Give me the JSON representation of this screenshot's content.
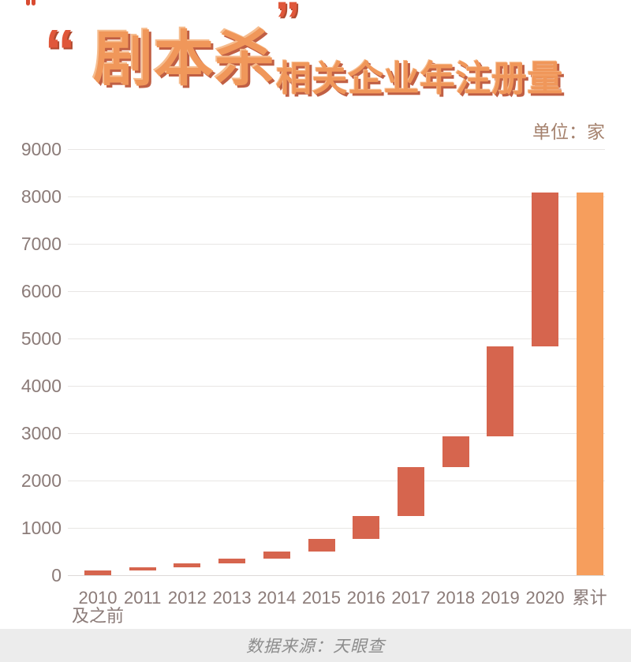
{
  "page": {
    "title": {
      "quote_open": "“",
      "highlight": "剧本杀",
      "quote_close": "”",
      "rest": "相关企业年注册量"
    },
    "unit_label": "单位：家",
    "source": "数据来源：天眼查"
  },
  "colors": {
    "increment_bar": "#D6654E",
    "total_bar": "#F69E5D",
    "title_face": "#F0975A",
    "title_shadow": "#C05F44",
    "quote_red": "#E0573A",
    "axis_text": "#8B7B78",
    "unit_text": "#A5826E",
    "gridline": "#E8E6E4",
    "footer_bg": "#ECECEC",
    "footer_text": "#8C8C8C"
  },
  "chart_data": {
    "type": "bar",
    "variant": "waterfall",
    "title": "“剧本杀”相关企业年注册量",
    "unit": "家",
    "source": "数据来源：天眼查",
    "grid": true,
    "legend": "none",
    "ylim": [
      0,
      9000
    ],
    "ytick_step": 1000,
    "yticks": [
      0,
      1000,
      2000,
      3000,
      4000,
      5000,
      6000,
      7000,
      8000,
      9000
    ],
    "categories": [
      "2010及之前",
      "2011",
      "2012",
      "2013",
      "2014",
      "2015",
      "2016",
      "2017",
      "2018",
      "2019",
      "2020",
      "累计"
    ],
    "bars": [
      {
        "label": "2010",
        "sublabel": "及之前",
        "start": 0,
        "end": 100,
        "value": 100,
        "kind": "increment"
      },
      {
        "label": "2011",
        "sublabel": "",
        "start": 100,
        "end": 175,
        "value": 75,
        "kind": "increment"
      },
      {
        "label": "2012",
        "sublabel": "",
        "start": 175,
        "end": 250,
        "value": 75,
        "kind": "increment"
      },
      {
        "label": "2013",
        "sublabel": "",
        "start": 250,
        "end": 350,
        "value": 100,
        "kind": "increment"
      },
      {
        "label": "2014",
        "sublabel": "",
        "start": 350,
        "end": 500,
        "value": 150,
        "kind": "increment"
      },
      {
        "label": "2015",
        "sublabel": "",
        "start": 500,
        "end": 770,
        "value": 270,
        "kind": "increment"
      },
      {
        "label": "2016",
        "sublabel": "",
        "start": 770,
        "end": 1245,
        "value": 475,
        "kind": "increment"
      },
      {
        "label": "2017",
        "sublabel": "",
        "start": 1245,
        "end": 2290,
        "value": 1045,
        "kind": "increment"
      },
      {
        "label": "2018",
        "sublabel": "",
        "start": 2290,
        "end": 2940,
        "value": 650,
        "kind": "increment"
      },
      {
        "label": "2019",
        "sublabel": "",
        "start": 2940,
        "end": 4840,
        "value": 1900,
        "kind": "increment"
      },
      {
        "label": "2020",
        "sublabel": "",
        "start": 4840,
        "end": 8080,
        "value": 3240,
        "kind": "increment"
      },
      {
        "label": "累计",
        "sublabel": "",
        "start": 0,
        "end": 8080,
        "value": 8080,
        "kind": "total"
      }
    ]
  }
}
